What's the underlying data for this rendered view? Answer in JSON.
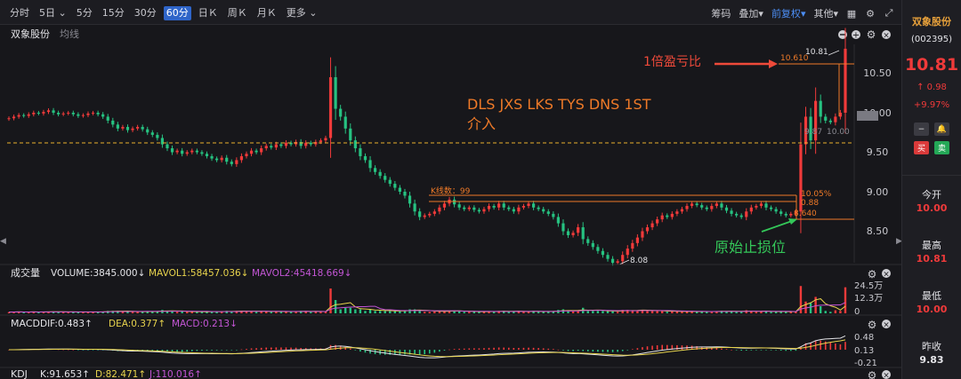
{
  "toolbar": {
    "tabs": [
      {
        "label": "分时",
        "active": false
      },
      {
        "label": "5日",
        "active": false,
        "dropdown": true
      },
      {
        "label": "5分",
        "active": false
      },
      {
        "label": "15分",
        "active": false
      },
      {
        "label": "30分",
        "active": false
      },
      {
        "label": "60分",
        "active": true
      },
      {
        "label": "日Ｋ",
        "active": false
      },
      {
        "label": "周Ｋ",
        "active": false
      },
      {
        "label": "月Ｋ",
        "active": false
      },
      {
        "label": "更多",
        "active": false,
        "dropdown": true
      }
    ],
    "chips": "筹码",
    "overlay": "叠加",
    "adjust": "前复权",
    "other": "其他"
  },
  "main_panel": {
    "stock_name": "双象股份",
    "indicator": "均线",
    "price_ticks": [
      "10.50",
      "10.00",
      "9.50",
      "9.00",
      "8.50"
    ],
    "annotations": {
      "profit_note": "1倍盈亏比",
      "strategy_line1": "DLS JXS LKS TYS DNS 1ST",
      "strategy_line2": "介入",
      "stop_loss_note": "原始止损位",
      "kline_count": "K线数：99",
      "level_top": "10.610",
      "high_label": "10.81",
      "low_label": "8.08",
      "pct_label": "10.05%",
      "diff_label": "0.88",
      "stop_label": "8.640",
      "mid_label1": "9.87",
      "mid_label2": "10.00"
    }
  },
  "volume_panel": {
    "title": "成交量",
    "volume": "VOLUME:3845.000↓",
    "mavol1": "MAVOL1:58457.036↓",
    "mavol2": "MAVOL2:45418.669↓",
    "ticks": [
      "24.5万",
      "12.3万",
      "0"
    ]
  },
  "macd_panel": {
    "title": "MACD",
    "dif": "DIF:0.483↑",
    "dea": "DEA:0.377↑",
    "macd": "MACD:0.213↓",
    "ticks": [
      "0.48",
      "0.13",
      "-0.21"
    ]
  },
  "kdj_panel": {
    "title": "KDJ",
    "k": "K:91.653↑",
    "d": "D:82.471↑",
    "j": "J:110.016↑"
  },
  "sidebar": {
    "name": "双象股份",
    "code": "(002395)",
    "price": "10.81",
    "change": "0.98",
    "change_pct": "+9.97%",
    "open_label": "今开",
    "open": "10.00",
    "high_label": "最高",
    "high": "10.81",
    "low_label": "最低",
    "low": "10.00",
    "prev_label": "昨收",
    "prev": "9.83",
    "buy": "买",
    "sell": "卖"
  },
  "colors": {
    "up": "#f03a3a",
    "down": "#26c281",
    "annotation": "#ef7a28",
    "stop_loss": "#34c759",
    "accent": "#2f65c9",
    "mavol1": "#e8d44d",
    "mavol2": "#c456d6",
    "background": "#17171b"
  },
  "chart_data": {
    "type": "candlestick",
    "timeframe": "60分",
    "price_range": [
      8.0,
      10.9
    ],
    "price_ticks": [
      8.5,
      9.0,
      9.5,
      10.0,
      10.5
    ],
    "levels": {
      "entry_dashed": 9.62,
      "target": 10.61,
      "box_top": 8.96,
      "box_bottom": 8.88,
      "stop_loss": 8.64
    },
    "extremes": {
      "high": 10.81,
      "low": 8.08
    },
    "close_series": [
      9.93,
      9.95,
      9.97,
      9.96,
      9.98,
      10.0,
      9.99,
      10.01,
      10.03,
      10.0,
      9.98,
      9.99,
      10.0,
      9.98,
      9.96,
      9.97,
      9.99,
      10.0,
      9.98,
      9.95,
      9.9,
      9.85,
      9.8,
      9.82,
      9.78,
      9.8,
      9.82,
      9.79,
      9.75,
      9.72,
      9.68,
      9.6,
      9.55,
      9.5,
      9.52,
      9.48,
      9.5,
      9.52,
      9.5,
      9.48,
      9.45,
      9.42,
      9.4,
      9.43,
      9.38,
      9.35,
      9.4,
      9.45,
      9.48,
      9.52,
      9.5,
      9.55,
      9.58,
      9.56,
      9.6,
      9.58,
      9.62,
      9.6,
      9.63,
      9.58,
      9.62,
      9.6,
      9.63,
      9.65,
      9.68,
      10.45,
      10.05,
      9.95,
      9.8,
      9.65,
      9.55,
      9.45,
      9.4,
      9.3,
      9.25,
      9.2,
      9.15,
      9.1,
      9.05,
      9.0,
      8.95,
      8.85,
      8.75,
      8.68,
      8.7,
      8.72,
      8.75,
      8.8,
      8.85,
      8.9,
      8.84,
      8.8,
      8.78,
      8.8,
      8.77,
      8.75,
      8.78,
      8.82,
      8.8,
      8.85,
      8.8,
      8.78,
      8.75,
      8.8,
      8.82,
      8.85,
      8.8,
      8.78,
      8.75,
      8.72,
      8.68,
      8.6,
      8.5,
      8.45,
      8.48,
      8.55,
      8.4,
      8.35,
      8.3,
      8.25,
      8.2,
      8.15,
      8.1,
      8.12,
      8.2,
      8.28,
      8.35,
      8.42,
      8.5,
      8.55,
      8.6,
      8.65,
      8.7,
      8.68,
      8.72,
      8.75,
      8.78,
      8.82,
      8.85,
      8.83,
      8.8,
      8.78,
      8.82,
      8.85,
      8.8,
      8.76,
      8.72,
      8.7,
      8.68,
      8.75,
      8.8,
      8.82,
      8.85,
      8.8,
      8.78,
      8.75,
      8.72,
      8.7,
      8.72,
      8.75,
      9.6,
      9.95,
      9.65,
      10.15,
      9.95,
      9.9,
      9.88,
      9.95,
      10.0,
      10.81
    ]
  }
}
